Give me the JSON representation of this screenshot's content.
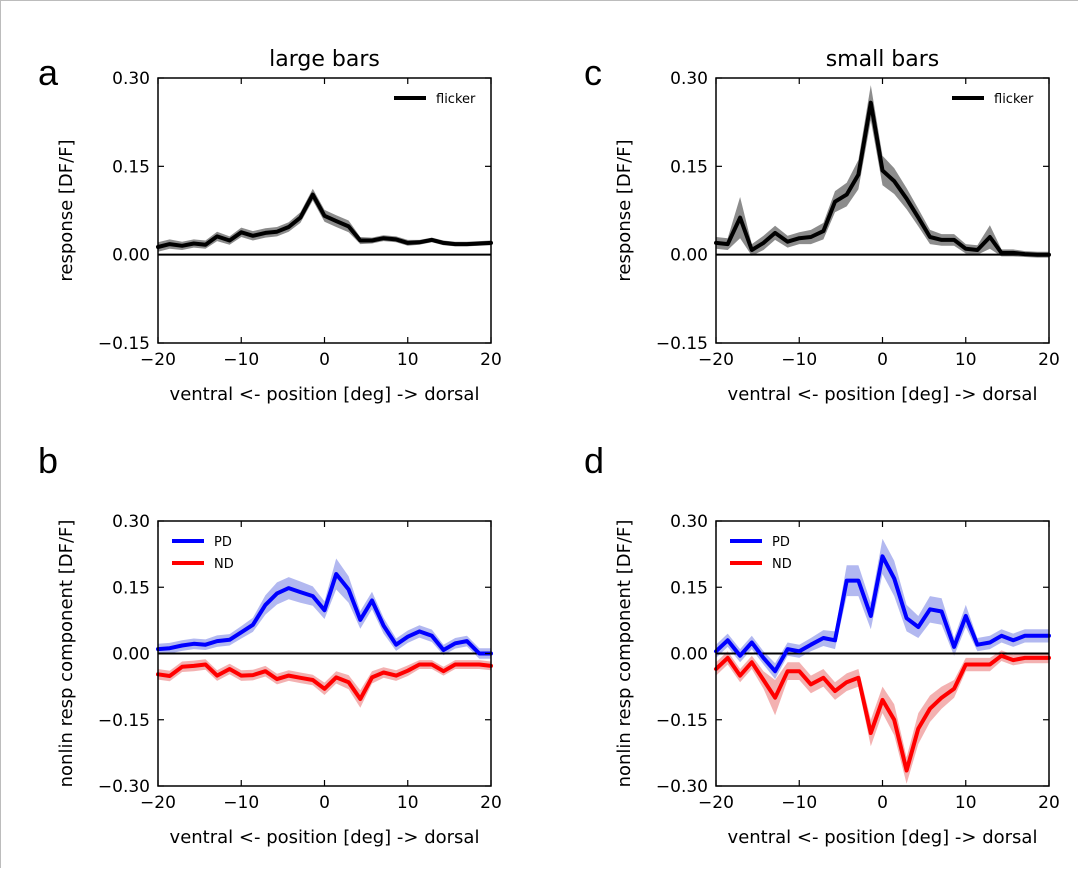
{
  "chart_data": [
    {
      "panel_letter": "a",
      "title": "large bars",
      "type": "line",
      "xlabel": "ventral <- position [deg] -> dorsal",
      "ylabel": "response [DF/F]",
      "xlim": [
        -20,
        20
      ],
      "ylim": [
        -0.15,
        0.3
      ],
      "xticks": [
        -20,
        -10,
        0,
        10,
        20
      ],
      "xtick_labels": [
        "−20",
        "−10",
        "0",
        "10",
        "20"
      ],
      "yticks": [
        -0.15,
        0.0,
        0.15,
        0.3
      ],
      "ytick_labels": [
        "−0.15",
        "0.00",
        "0.15",
        "0.30"
      ],
      "zero_line": true,
      "legend_position": "top-right",
      "x": [
        -20,
        -18.6,
        -17.1,
        -15.7,
        -14.3,
        -12.9,
        -11.4,
        -10,
        -8.6,
        -7.1,
        -5.7,
        -4.3,
        -2.9,
        -1.4,
        0,
        1.4,
        2.9,
        4.3,
        5.7,
        7.1,
        8.6,
        10,
        11.4,
        12.9,
        14.3,
        15.7,
        17.1,
        18.6,
        20
      ],
      "series": [
        {
          "name": "flicker",
          "color": "#000000",
          "band_color": "#808080",
          "values": [
            0.013,
            0.018,
            0.015,
            0.019,
            0.017,
            0.031,
            0.024,
            0.038,
            0.032,
            0.037,
            0.039,
            0.047,
            0.063,
            0.102,
            0.066,
            0.057,
            0.048,
            0.024,
            0.024,
            0.028,
            0.026,
            0.02,
            0.021,
            0.025,
            0.02,
            0.018,
            0.018,
            0.019,
            0.02
          ],
          "errors": [
            0.008,
            0.008,
            0.007,
            0.007,
            0.007,
            0.008,
            0.007,
            0.008,
            0.008,
            0.008,
            0.008,
            0.008,
            0.009,
            0.01,
            0.01,
            0.01,
            0.01,
            0.006,
            0.005,
            0.005,
            0.005,
            0.005,
            0.004,
            0.004,
            0.004,
            0.004,
            0.004,
            0.004,
            0.004
          ]
        }
      ]
    },
    {
      "panel_letter": "b",
      "title": "",
      "type": "line",
      "xlabel": "ventral <- position [deg] -> dorsal",
      "ylabel": "nonlin resp component [DF/F]",
      "xlim": [
        -20,
        20
      ],
      "ylim": [
        -0.3,
        0.3
      ],
      "xticks": [
        -20,
        -10,
        0,
        10,
        20
      ],
      "xtick_labels": [
        "−20",
        "−10",
        "0",
        "10",
        "20"
      ],
      "yticks": [
        -0.3,
        -0.15,
        0.0,
        0.15,
        0.3
      ],
      "ytick_labels": [
        "−0.30",
        "−0.15",
        "0.00",
        "0.15",
        "0.30"
      ],
      "zero_line": true,
      "legend_position": "top-left",
      "x": [
        -20,
        -18.6,
        -17.1,
        -15.7,
        -14.3,
        -12.9,
        -11.4,
        -10,
        -8.6,
        -7.1,
        -5.7,
        -4.3,
        -2.9,
        -1.4,
        0,
        1.4,
        2.9,
        4.3,
        5.7,
        7.1,
        8.6,
        10,
        11.4,
        12.9,
        14.3,
        15.7,
        17.1,
        18.6,
        20
      ],
      "series": [
        {
          "name": "PD",
          "color": "#0000ff",
          "band_color": "#aab0ee",
          "values": [
            0.01,
            0.012,
            0.018,
            0.022,
            0.02,
            0.028,
            0.031,
            0.048,
            0.065,
            0.11,
            0.136,
            0.148,
            0.139,
            0.13,
            0.098,
            0.18,
            0.145,
            0.076,
            0.12,
            0.063,
            0.02,
            0.038,
            0.05,
            0.04,
            0.008,
            0.023,
            0.028,
            0.0,
            0.0
          ],
          "errors": [
            0.012,
            0.012,
            0.012,
            0.012,
            0.012,
            0.013,
            0.013,
            0.014,
            0.016,
            0.022,
            0.025,
            0.025,
            0.024,
            0.022,
            0.02,
            0.035,
            0.03,
            0.02,
            0.02,
            0.018,
            0.014,
            0.014,
            0.014,
            0.014,
            0.012,
            0.012,
            0.012,
            0.012,
            0.012
          ]
        },
        {
          "name": "ND",
          "color": "#ff0000",
          "band_color": "#f2a8a8",
          "values": [
            -0.047,
            -0.051,
            -0.03,
            -0.028,
            -0.025,
            -0.05,
            -0.035,
            -0.05,
            -0.049,
            -0.04,
            -0.058,
            -0.05,
            -0.055,
            -0.06,
            -0.08,
            -0.054,
            -0.065,
            -0.103,
            -0.054,
            -0.043,
            -0.05,
            -0.039,
            -0.025,
            -0.025,
            -0.04,
            -0.025,
            -0.025,
            -0.025,
            -0.028
          ],
          "errors": [
            0.012,
            0.012,
            0.012,
            0.012,
            0.012,
            0.012,
            0.012,
            0.012,
            0.012,
            0.012,
            0.012,
            0.012,
            0.012,
            0.012,
            0.014,
            0.014,
            0.016,
            0.02,
            0.014,
            0.012,
            0.012,
            0.012,
            0.01,
            0.01,
            0.01,
            0.01,
            0.01,
            0.01,
            0.01
          ]
        }
      ]
    },
    {
      "panel_letter": "c",
      "title": "small bars",
      "type": "line",
      "xlabel": "ventral <- position [deg] -> dorsal",
      "ylabel": "response [DF/F]",
      "xlim": [
        -20,
        20
      ],
      "ylim": [
        -0.15,
        0.3
      ],
      "xticks": [
        -20,
        -10,
        0,
        10,
        20
      ],
      "xtick_labels": [
        "−20",
        "−10",
        "0",
        "10",
        "20"
      ],
      "yticks": [
        -0.15,
        0.0,
        0.15,
        0.3
      ],
      "ytick_labels": [
        "−0.15",
        "0.00",
        "0.15",
        "0.30"
      ],
      "zero_line": true,
      "legend_position": "top-right",
      "x": [
        -20,
        -18.6,
        -17.1,
        -15.7,
        -14.3,
        -12.9,
        -11.4,
        -10,
        -8.6,
        -7.1,
        -5.7,
        -4.3,
        -2.9,
        -1.4,
        0,
        1.4,
        2.9,
        4.3,
        5.7,
        7.1,
        8.6,
        10,
        11.4,
        12.9,
        14.3,
        15.7,
        17.1,
        18.6,
        20
      ],
      "series": [
        {
          "name": "flicker",
          "color": "#000000",
          "band_color": "#808080",
          "values": [
            0.02,
            0.018,
            0.063,
            0.008,
            0.02,
            0.037,
            0.022,
            0.028,
            0.03,
            0.04,
            0.09,
            0.102,
            0.136,
            0.258,
            0.143,
            0.125,
            0.095,
            0.063,
            0.03,
            0.025,
            0.025,
            0.01,
            0.008,
            0.03,
            0.003,
            0.003,
            0.001,
            0.0,
            0.0
          ],
          "errors": [
            0.01,
            0.01,
            0.035,
            0.01,
            0.012,
            0.012,
            0.01,
            0.01,
            0.012,
            0.014,
            0.018,
            0.02,
            0.025,
            0.03,
            0.025,
            0.022,
            0.018,
            0.015,
            0.012,
            0.01,
            0.01,
            0.008,
            0.008,
            0.02,
            0.006,
            0.006,
            0.005,
            0.005,
            0.005
          ]
        }
      ]
    },
    {
      "panel_letter": "d",
      "title": "",
      "type": "line",
      "xlabel": "ventral <- position [deg] -> dorsal",
      "ylabel": "nonlin resp component [DF/F]",
      "xlim": [
        -20,
        20
      ],
      "ylim": [
        -0.3,
        0.3
      ],
      "xticks": [
        -20,
        -10,
        0,
        10,
        20
      ],
      "xtick_labels": [
        "−20",
        "−10",
        "0",
        "10",
        "20"
      ],
      "yticks": [
        -0.3,
        -0.15,
        0.0,
        0.15,
        0.3
      ],
      "ytick_labels": [
        "−0.30",
        "−0.15",
        "0.00",
        "0.15",
        "0.30"
      ],
      "zero_line": true,
      "legend_position": "top-left",
      "x": [
        -20,
        -18.6,
        -17.1,
        -15.7,
        -14.3,
        -12.9,
        -11.4,
        -10,
        -8.6,
        -7.1,
        -5.7,
        -4.3,
        -2.9,
        -1.4,
        0,
        1.4,
        2.9,
        4.3,
        5.7,
        7.1,
        8.6,
        10,
        11.4,
        12.9,
        14.3,
        15.7,
        17.1,
        18.6,
        20
      ],
      "series": [
        {
          "name": "PD",
          "color": "#0000ff",
          "band_color": "#aab0ee",
          "values": [
            0.005,
            0.03,
            -0.005,
            0.025,
            -0.01,
            -0.04,
            0.01,
            0.005,
            0.02,
            0.035,
            0.03,
            0.165,
            0.165,
            0.085,
            0.22,
            0.17,
            0.08,
            0.06,
            0.1,
            0.095,
            0.015,
            0.085,
            0.02,
            0.025,
            0.04,
            0.03,
            0.04,
            0.04,
            0.04
          ],
          "errors": [
            0.015,
            0.015,
            0.015,
            0.015,
            0.015,
            0.018,
            0.015,
            0.015,
            0.015,
            0.018,
            0.02,
            0.035,
            0.035,
            0.03,
            0.04,
            0.04,
            0.03,
            0.025,
            0.03,
            0.03,
            0.02,
            0.025,
            0.015,
            0.015,
            0.015,
            0.015,
            0.015,
            0.015,
            0.015
          ]
        },
        {
          "name": "ND",
          "color": "#ff0000",
          "band_color": "#f2a8a8",
          "values": [
            -0.035,
            -0.01,
            -0.05,
            -0.02,
            -0.06,
            -0.1,
            -0.04,
            -0.04,
            -0.07,
            -0.055,
            -0.085,
            -0.065,
            -0.055,
            -0.18,
            -0.105,
            -0.15,
            -0.265,
            -0.17,
            -0.125,
            -0.1,
            -0.08,
            -0.025,
            -0.025,
            -0.025,
            -0.005,
            -0.015,
            -0.01,
            -0.01,
            -0.01
          ],
          "errors": [
            0.015,
            0.015,
            0.015,
            0.015,
            0.02,
            0.04,
            0.02,
            0.02,
            0.02,
            0.02,
            0.02,
            0.02,
            0.02,
            0.03,
            0.03,
            0.035,
            0.03,
            0.035,
            0.03,
            0.025,
            0.02,
            0.015,
            0.015,
            0.015,
            0.012,
            0.012,
            0.012,
            0.012,
            0.012
          ]
        }
      ]
    }
  ]
}
